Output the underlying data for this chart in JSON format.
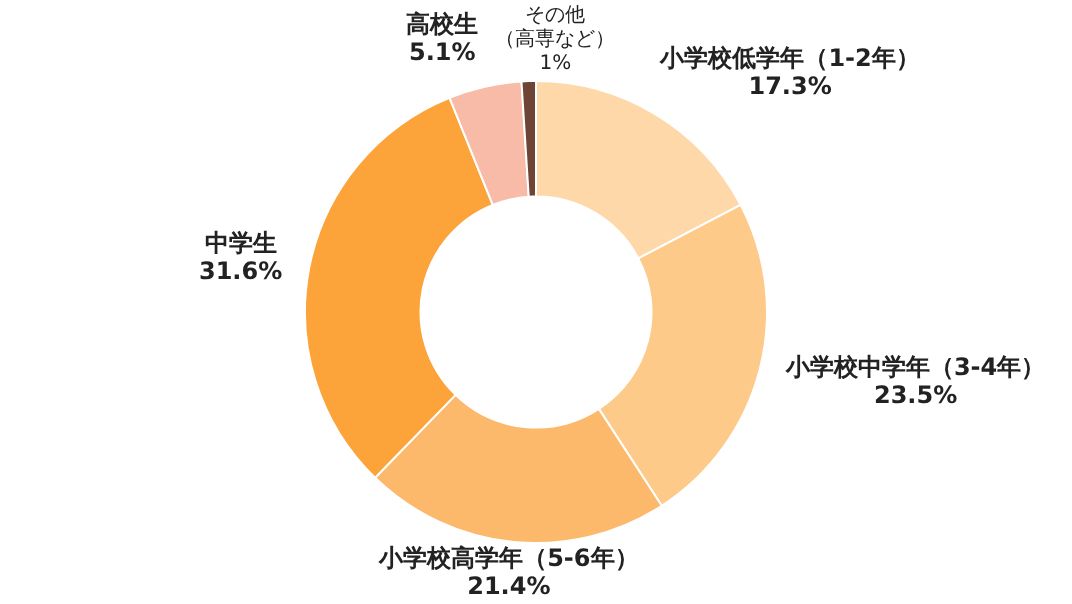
{
  "chart_data": {
    "type": "donut",
    "categories": [
      "小学校低学年（1-2年）",
      "小学校中学年（3-4年）",
      "小学校高学年（5-6年）",
      "中学生",
      "高校生",
      "その他（高専など）"
    ],
    "values": [
      17.3,
      23.5,
      21.4,
      31.6,
      5.1,
      1
    ],
    "value_labels": [
      "17.3%",
      "23.5%",
      "21.4%",
      "31.6%",
      "5.1%",
      "1%"
    ],
    "colors": [
      "#fed8a8",
      "#fdca8a",
      "#fdb96b",
      "#fca339",
      "#f8bba8",
      "#6e4434"
    ],
    "legend": false
  }
}
